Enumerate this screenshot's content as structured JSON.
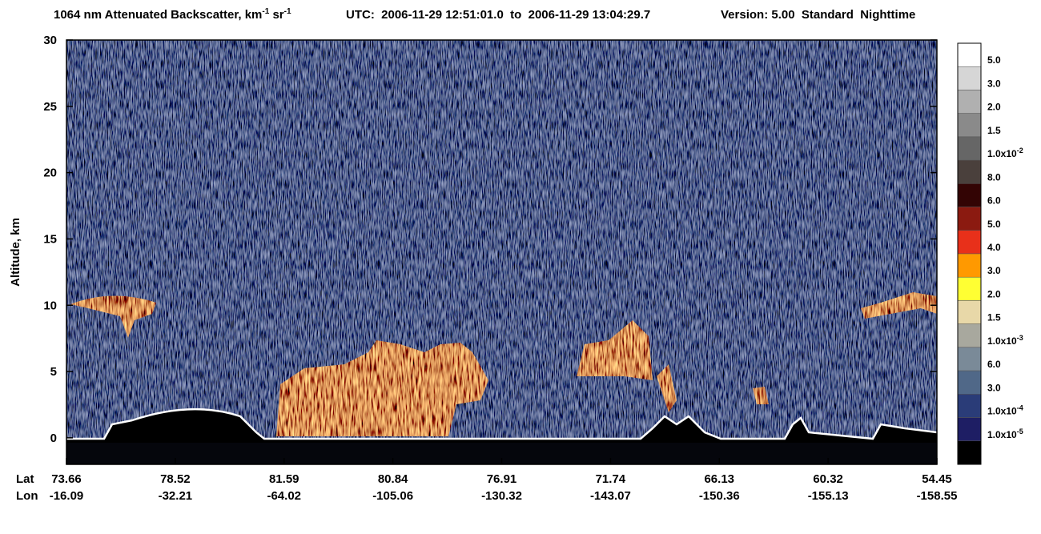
{
  "chart_data": {
    "type": "curtain",
    "title": {
      "main": "1064 nm Attenuated Backscatter, km",
      "sup1": "-1",
      "mid": " sr",
      "sup2": "-1"
    },
    "time_range": "UTC:  2006-11-29 12:51:01.0  to  2006-11-29 13:04:29.7",
    "version": "Version: 5.00  Standard  Nighttime",
    "ylabel": "Altitude, km",
    "ylim": [
      -2,
      30
    ],
    "yticks": [
      0,
      5,
      10,
      15,
      20,
      25,
      30
    ],
    "lat_label": "Lat",
    "lon_label": "Lon",
    "lat": [
      "73.66",
      "78.52",
      "81.59",
      "80.84",
      "76.91",
      "71.74",
      "66.13",
      "60.32",
      "54.45"
    ],
    "lon": [
      "-16.09",
      "-32.21",
      "-64.02",
      "-105.06",
      "-130.32",
      "-143.07",
      "-150.36",
      "-155.13",
      "-158.55"
    ],
    "colorbar": {
      "colors": [
        "#ffffff",
        "#d6d6d6",
        "#b0b0b0",
        "#8a8a8a",
        "#666666",
        "#4a403c",
        "#330404",
        "#8b1a10",
        "#e8301a",
        "#ff9900",
        "#ffff33",
        "#e8d8a8",
        "#a8a89e",
        "#7a8a98",
        "#506888",
        "#2a3c78",
        "#1e1e64",
        "#000000"
      ],
      "labels": [
        {
          "text": "5.0"
        },
        {
          "text": "3.0"
        },
        {
          "text": "2.0"
        },
        {
          "text": "1.5"
        },
        {
          "text": "1.0x10",
          "sup": "-2"
        },
        {
          "text": "8.0"
        },
        {
          "text": "6.0"
        },
        {
          "text": "5.0"
        },
        {
          "text": "4.0"
        },
        {
          "text": "3.0"
        },
        {
          "text": "2.0"
        },
        {
          "text": "1.5"
        },
        {
          "text": "1.0x10",
          "sup": "-3"
        },
        {
          "text": "6.0"
        },
        {
          "text": "3.0"
        },
        {
          "text": "1.0x10",
          "sup": "-4"
        },
        {
          "text": "1.0x10",
          "sup": "-5"
        }
      ]
    }
  }
}
